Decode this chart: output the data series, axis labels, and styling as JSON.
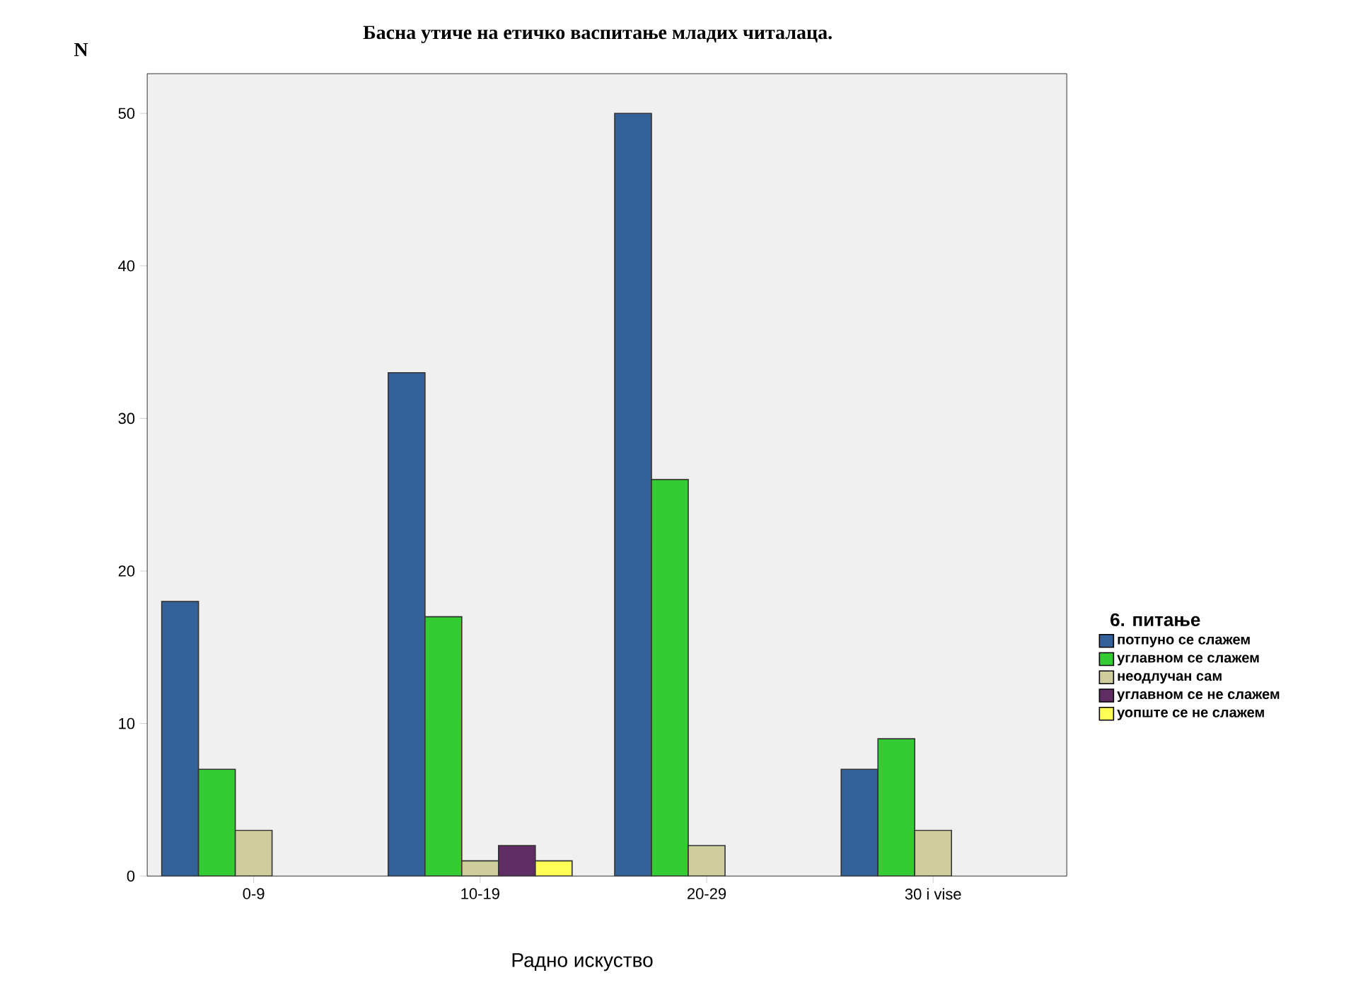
{
  "chart_data": {
    "type": "bar",
    "title": "Басна утиче на етичко васпитање младих читалаца.",
    "xlabel": "Радно искуство",
    "ylabel": "N",
    "legend_title": "6. питање",
    "legend": "right",
    "categories": [
      "0-9",
      "10-19",
      "20-29",
      "30 i vise"
    ],
    "ylim": [
      0,
      52.6
    ],
    "yticks": [
      0,
      10,
      20,
      30,
      40,
      50
    ],
    "series": [
      {
        "name": "потпуно се слажем",
        "color": "#33629a",
        "values": [
          18,
          33,
          50,
          7
        ]
      },
      {
        "name": "углавном се слажем",
        "color": "#33cc33",
        "values": [
          7,
          17,
          26,
          9
        ]
      },
      {
        "name": "неодлучан сам",
        "color": "#cfcd9b",
        "values": [
          3,
          1,
          2,
          3
        ]
      },
      {
        "name": "углавном се не слажем",
        "color": "#5f2d63",
        "values": [
          null,
          2,
          null,
          null
        ]
      },
      {
        "name": "уопште се не слажем",
        "color": "#ffff55",
        "values": [
          null,
          1,
          null,
          null
        ]
      }
    ]
  }
}
